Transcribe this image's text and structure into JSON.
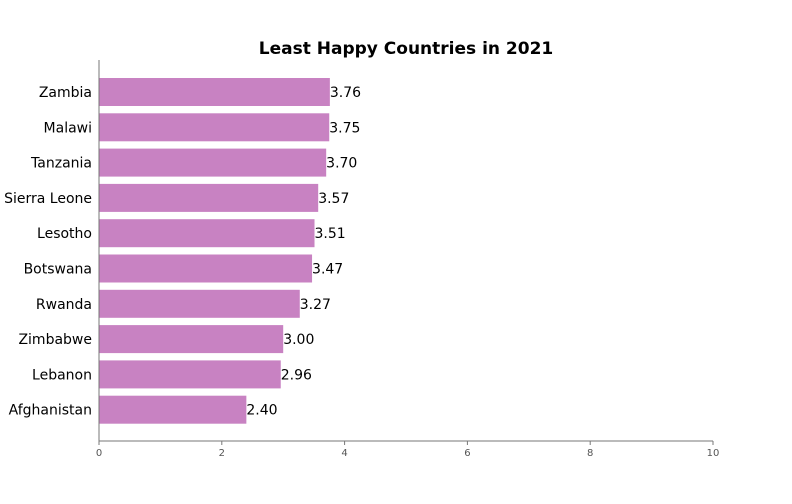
{
  "chart_data": {
    "type": "bar",
    "orientation": "horizontal",
    "title": "Least Happy Countries in 2021",
    "xlabel": "",
    "ylabel": "",
    "categories": [
      "Zambia",
      "Malawi",
      "Tanzania",
      "Sierra Leone",
      "Lesotho",
      "Botswana",
      "Rwanda",
      "Zimbabwe",
      "Lebanon",
      "Afghanistan"
    ],
    "values": [
      3.76,
      3.75,
      3.7,
      3.57,
      3.51,
      3.47,
      3.27,
      3.0,
      2.96,
      2.4
    ],
    "value_labels": [
      "3.76",
      "3.75",
      "3.70",
      "3.57",
      "3.51",
      "3.47",
      "3.27",
      "3.00",
      "2.96",
      "2.40"
    ],
    "xlim": [
      0,
      10
    ],
    "xticks": [
      0,
      2,
      4,
      6,
      8,
      10
    ],
    "bar_color": "#c882c2",
    "grid": false,
    "legend": "none"
  }
}
